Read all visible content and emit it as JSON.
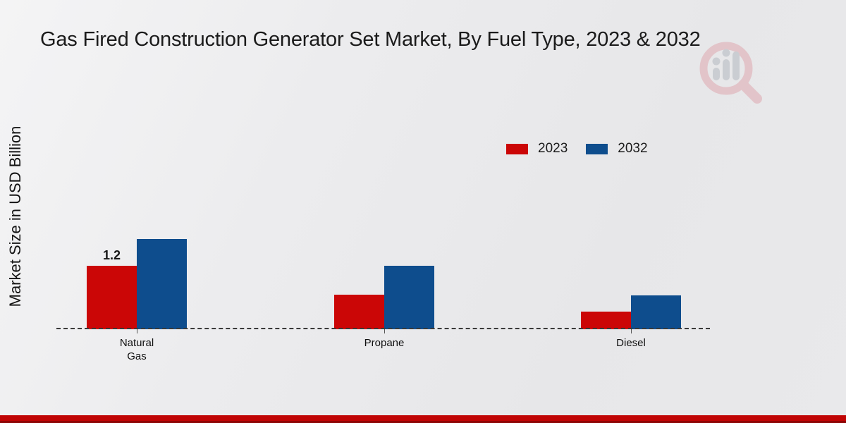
{
  "title": "Gas Fired Construction Generator Set Market, By Fuel Type, 2023 & 2032",
  "y_axis_label": "Market Size in USD Billion",
  "legend": {
    "entries": [
      {
        "label": "2023",
        "color": "#cb0606"
      },
      {
        "label": "2032",
        "color": "#0e4d8d"
      }
    ]
  },
  "chart_data": {
    "type": "bar",
    "title": "Gas Fired Construction Generator Set Market, By Fuel Type, 2023 & 2032",
    "xlabel": "",
    "ylabel": "Market Size in USD Billion",
    "categories": [
      "Natural Gas",
      "Propane",
      "Diesel"
    ],
    "category_label_lines": [
      [
        "Natural",
        "Gas"
      ],
      [
        "Propane"
      ],
      [
        "Diesel"
      ]
    ],
    "series": [
      {
        "name": "2023",
        "color": "#cb0606",
        "values": [
          1.2,
          0.65,
          0.33
        ]
      },
      {
        "name": "2032",
        "color": "#0e4d8d",
        "values": [
          1.7,
          1.2,
          0.64
        ]
      }
    ],
    "data_labels": [
      {
        "series_index": 0,
        "category_index": 0,
        "text": "1.2"
      }
    ],
    "ylim": [
      0,
      2
    ],
    "grid": "off",
    "legend_position": "top-right",
    "axis_style": "dashed-baseline-only"
  },
  "colors": {
    "accent_red": "#cb0606",
    "accent_blue": "#0e4d8d",
    "footer_bar": "#c00404",
    "background": "#ebebed",
    "watermark_red": "#dfa9b0",
    "watermark_gray": "#b4b8c0"
  }
}
